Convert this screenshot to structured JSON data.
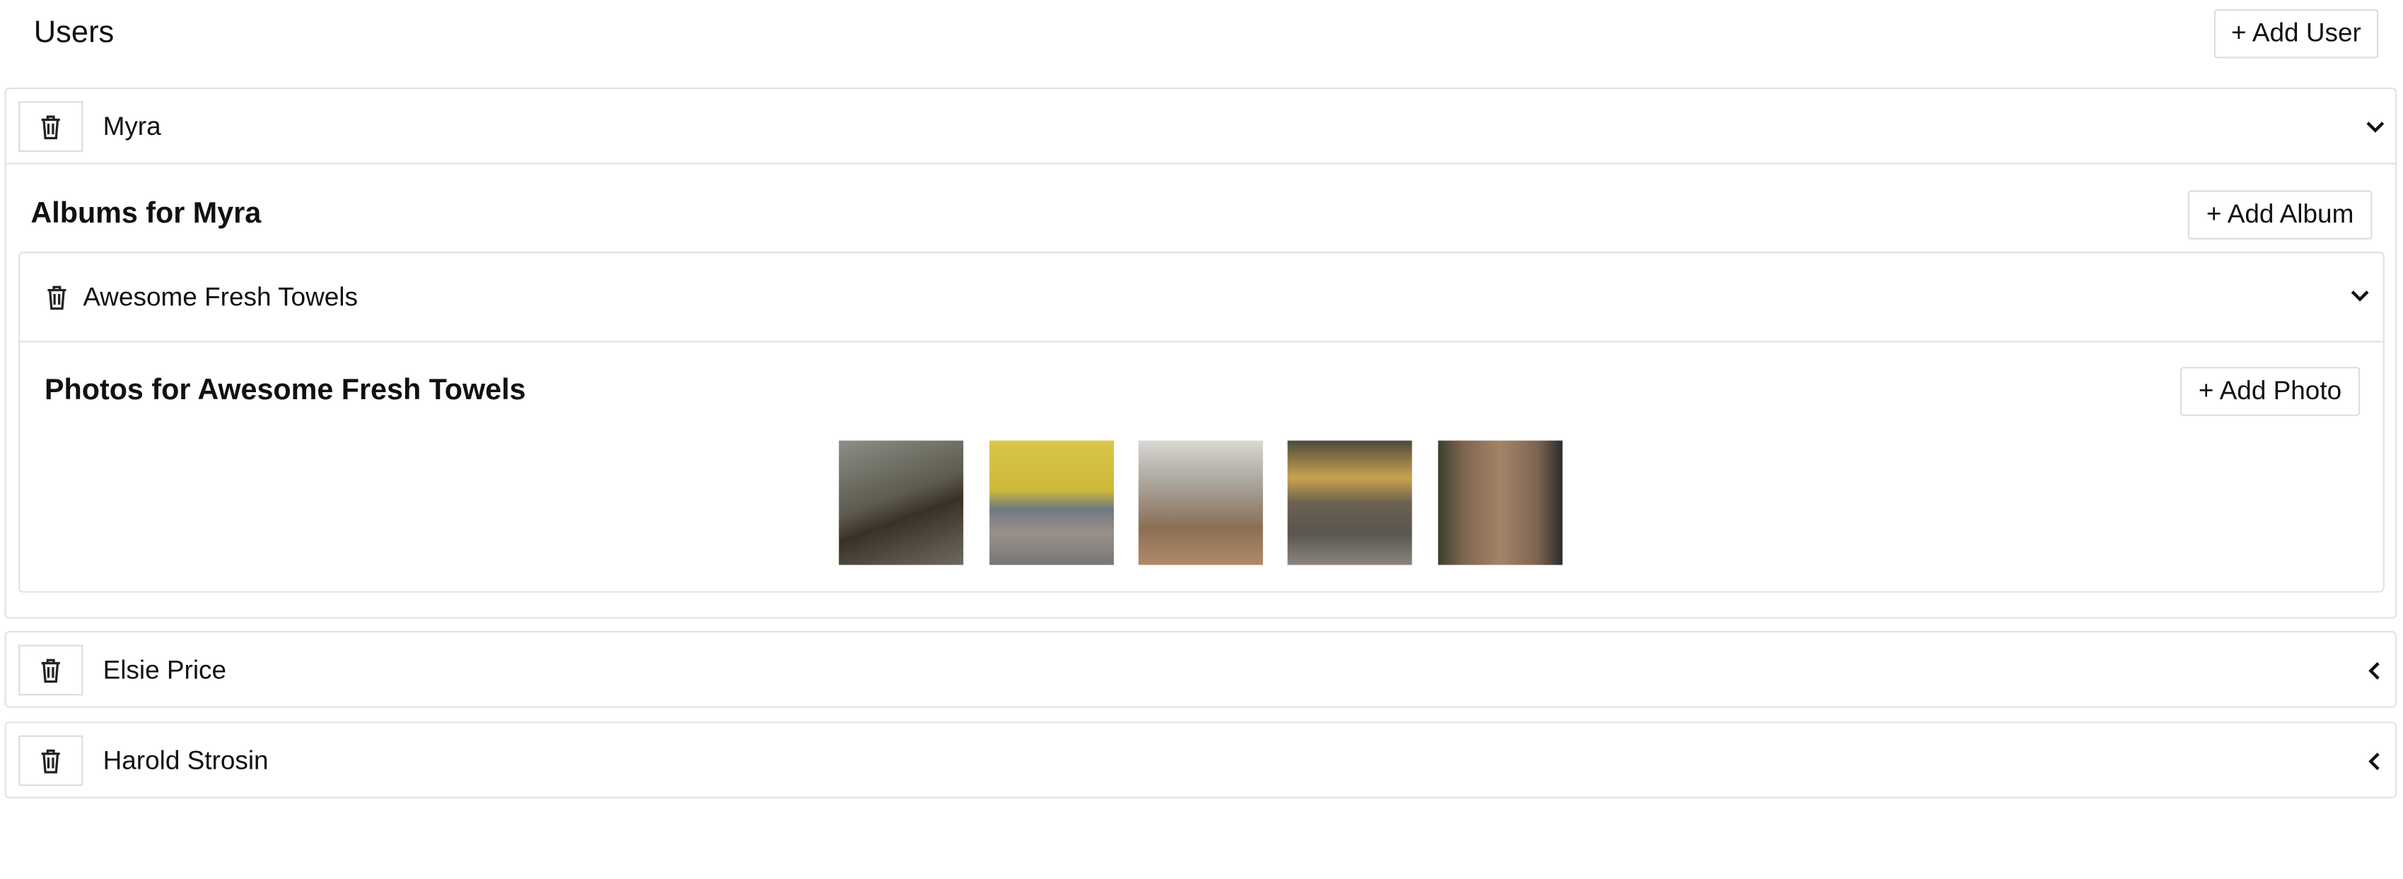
{
  "header": {
    "title": "Users",
    "add_button": "+ Add User"
  },
  "users": [
    {
      "name": "Myra",
      "expanded": true,
      "albums_title": "Albums for Myra",
      "add_album": "+ Add Album",
      "album": {
        "name": "Awesome Fresh Towels",
        "photos_title": "Photos for Awesome Fresh Towels",
        "add_photo": "+ Add Photo"
      }
    },
    {
      "name": "Elsie Price",
      "expanded": false
    },
    {
      "name": "Harold Strosin",
      "expanded": false
    }
  ]
}
